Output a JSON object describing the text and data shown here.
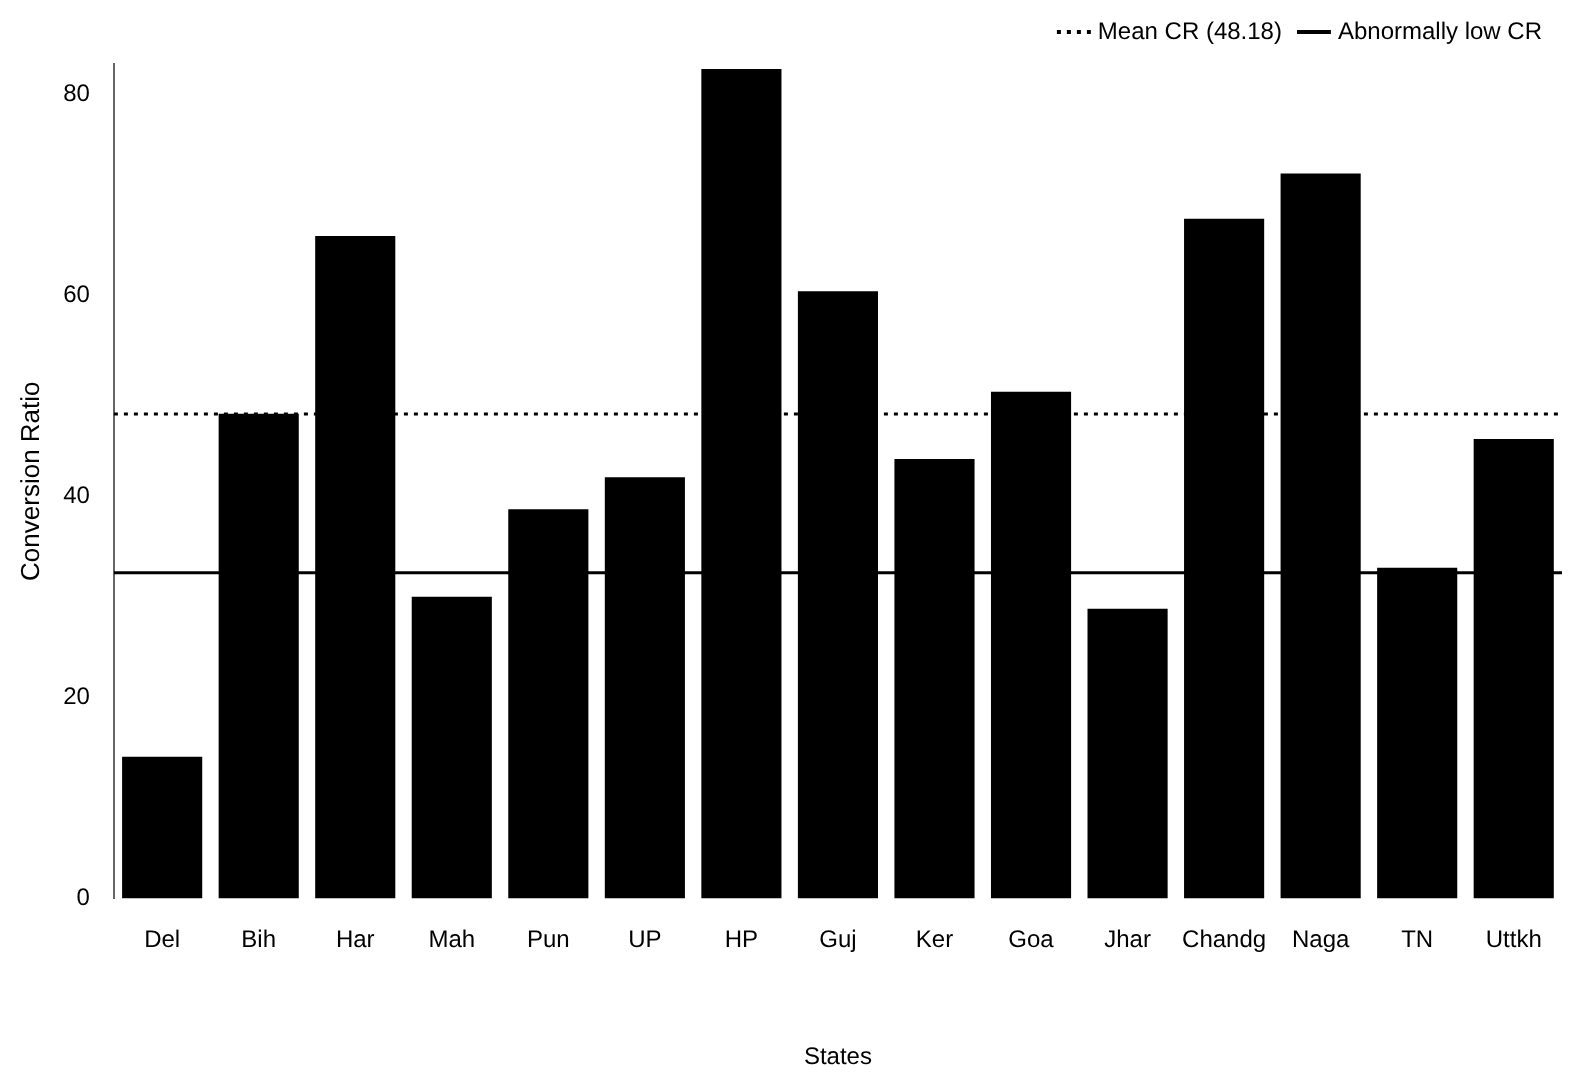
{
  "chart_data": {
    "type": "bar",
    "xlabel": "States",
    "ylabel": "Conversion Ratio",
    "categories": [
      "Del",
      "Bih",
      "Har",
      "Mah",
      "Pun",
      "UP",
      "HP",
      "Guj",
      "Ker",
      "Goa",
      "Jhar",
      "Chandg",
      "Naga",
      "TN",
      "Uttkh"
    ],
    "values": [
      14.1,
      48.2,
      65.9,
      30.0,
      38.7,
      41.9,
      82.5,
      60.4,
      43.7,
      50.4,
      28.8,
      67.6,
      72.1,
      32.9,
      45.7
    ],
    "color": "#000000",
    "ylim": [
      0,
      83
    ],
    "yticks": [
      0,
      20,
      40,
      60,
      80
    ],
    "grid": false,
    "legend": "top right",
    "ref_lines": [
      {
        "axis": "y",
        "value": 48.18,
        "label": "Mean CR (48.18)",
        "line_style": "dotted",
        "color": "#000000"
      },
      {
        "axis": "y",
        "value": 32.4,
        "label": "Abnormally low CR",
        "line_style": "solid",
        "color": "#000000"
      }
    ]
  }
}
